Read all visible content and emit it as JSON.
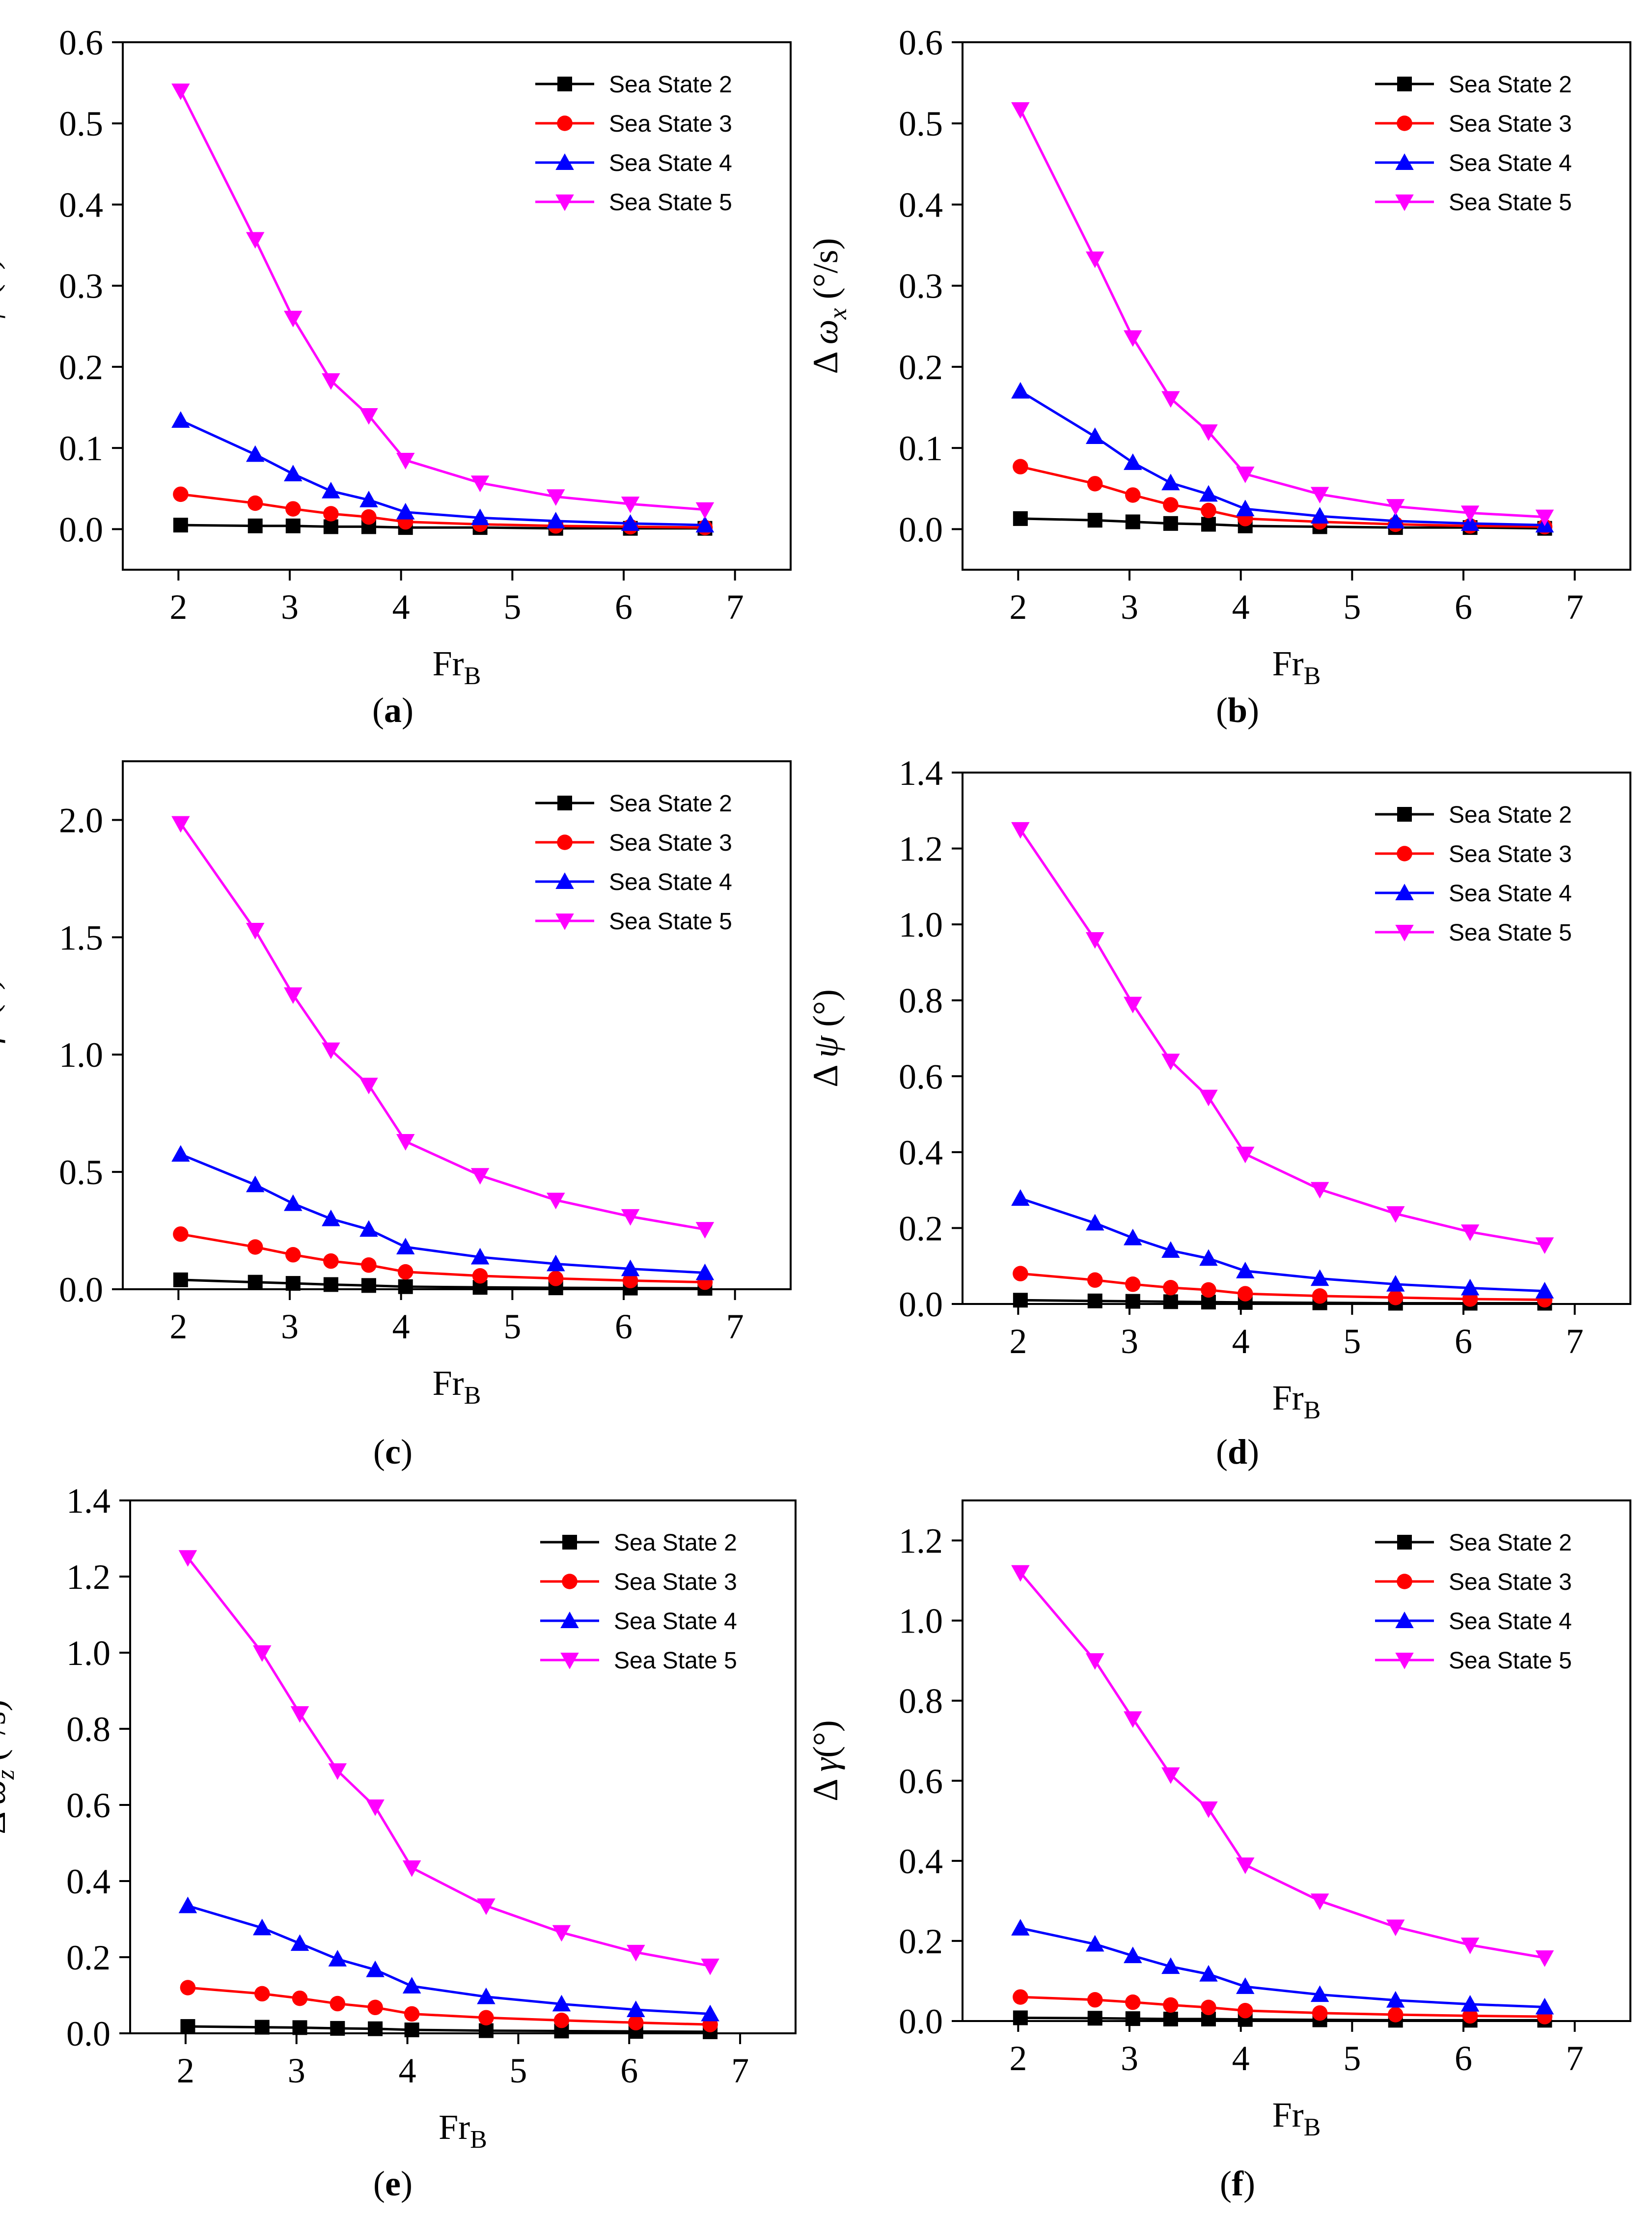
{
  "xlabel_main": "Fr",
  "xlabel_sub": "B",
  "series_colors": [
    "#000000",
    "#ff0000",
    "#0000ff",
    "#ff00ff"
  ],
  "series_markers": [
    "square",
    "circle",
    "triangle-up",
    "triangle-down"
  ],
  "chart_data": [
    {
      "type": "line",
      "caption": "a",
      "ylabel_prefix": "Δ ",
      "ylabel_symbol": "φ",
      "ylabel_sub": "",
      "ylabel_unit": " (°)",
      "xlim": [
        1.5,
        7.5
      ],
      "ylim": [
        -0.05,
        0.6
      ],
      "xticks": [
        "2",
        "3",
        "4",
        "5",
        "6",
        "7"
      ],
      "yticks": [
        "0.0",
        "0.1",
        "0.2",
        "0.3",
        "0.4",
        "0.5",
        "0.6"
      ],
      "legend_position": "top-right",
      "x": [
        2.02,
        2.69,
        3.03,
        3.37,
        3.71,
        4.04,
        4.71,
        5.39,
        6.06,
        6.73
      ],
      "series": [
        {
          "name": "Sea State 2",
          "values": [
            0.005,
            0.004,
            0.004,
            0.003,
            0.003,
            0.002,
            0.002,
            0.001,
            0.001,
            0.001
          ]
        },
        {
          "name": "Sea State 3",
          "values": [
            0.043,
            0.032,
            0.025,
            0.019,
            0.015,
            0.009,
            0.006,
            0.004,
            0.003,
            0.002
          ]
        },
        {
          "name": "Sea State 4",
          "values": [
            0.134,
            0.092,
            0.068,
            0.047,
            0.036,
            0.021,
            0.014,
            0.01,
            0.007,
            0.005
          ]
        },
        {
          "name": "Sea State 5",
          "values": [
            0.54,
            0.357,
            0.26,
            0.183,
            0.14,
            0.085,
            0.057,
            0.04,
            0.031,
            0.024
          ]
        }
      ]
    },
    {
      "type": "line",
      "caption": "b",
      "ylabel_prefix": "Δ ",
      "ylabel_symbol": "ω",
      "ylabel_sub": "x",
      "ylabel_unit": " (°/s)",
      "xlim": [
        1.5,
        7.5
      ],
      "ylim": [
        -0.05,
        0.6
      ],
      "xticks": [
        "2",
        "3",
        "4",
        "5",
        "6",
        "7"
      ],
      "yticks": [
        "0.0",
        "0.1",
        "0.2",
        "0.3",
        "0.4",
        "0.5",
        "0.6"
      ],
      "legend_position": "top-right",
      "x": [
        2.02,
        2.69,
        3.03,
        3.37,
        3.71,
        4.04,
        4.71,
        5.39,
        6.06,
        6.73
      ],
      "series": [
        {
          "name": "Sea State 2",
          "values": [
            0.013,
            0.011,
            0.009,
            0.007,
            0.006,
            0.004,
            0.003,
            0.002,
            0.002,
            0.001
          ]
        },
        {
          "name": "Sea State 3",
          "values": [
            0.077,
            0.056,
            0.042,
            0.03,
            0.023,
            0.013,
            0.009,
            0.006,
            0.004,
            0.003
          ]
        },
        {
          "name": "Sea State 4",
          "values": [
            0.17,
            0.114,
            0.082,
            0.057,
            0.043,
            0.025,
            0.016,
            0.01,
            0.007,
            0.005
          ]
        },
        {
          "name": "Sea State 5",
          "values": [
            0.517,
            0.333,
            0.236,
            0.161,
            0.12,
            0.068,
            0.043,
            0.028,
            0.02,
            0.015
          ]
        }
      ]
    },
    {
      "type": "line",
      "caption": "c",
      "ylabel_prefix": "Δ ",
      "ylabel_symbol": "β",
      "ylabel_sub": "",
      "ylabel_unit": " (°)",
      "xlim": [
        1.5,
        7.5
      ],
      "ylim": [
        0.0,
        2.25
      ],
      "xticks": [
        "2",
        "3",
        "4",
        "5",
        "6",
        "7"
      ],
      "yticks": [
        "0.0",
        "0.5",
        "1.0",
        "1.5",
        "2.0"
      ],
      "legend_position": "top-right",
      "x": [
        2.02,
        2.69,
        3.03,
        3.37,
        3.71,
        4.04,
        4.71,
        5.39,
        6.06,
        6.73
      ],
      "series": [
        {
          "name": "Sea State 2",
          "values": [
            0.04,
            0.03,
            0.025,
            0.02,
            0.016,
            0.011,
            0.008,
            0.006,
            0.005,
            0.004
          ]
        },
        {
          "name": "Sea State 3",
          "values": [
            0.235,
            0.18,
            0.147,
            0.12,
            0.103,
            0.074,
            0.057,
            0.046,
            0.037,
            0.03
          ]
        },
        {
          "name": "Sea State 4",
          "values": [
            0.575,
            0.445,
            0.365,
            0.3,
            0.255,
            0.18,
            0.137,
            0.108,
            0.087,
            0.07
          ]
        },
        {
          "name": "Sea State 5",
          "values": [
            1.985,
            1.53,
            1.255,
            1.02,
            0.87,
            0.63,
            0.485,
            0.38,
            0.31,
            0.255
          ]
        }
      ]
    },
    {
      "type": "line",
      "caption": "d",
      "ylabel_prefix": "Δ ",
      "ylabel_symbol": "ψ",
      "ylabel_sub": "",
      "ylabel_unit": " (°)",
      "xlim": [
        1.5,
        7.5
      ],
      "ylim": [
        0.0,
        1.4
      ],
      "xticks": [
        "2",
        "3",
        "4",
        "5",
        "6",
        "7"
      ],
      "yticks": [
        "0.0",
        "0.2",
        "0.4",
        "0.6",
        "0.8",
        "1.0",
        "1.2",
        "1.4"
      ],
      "legend_position": "top-right",
      "x": [
        2.02,
        2.69,
        3.03,
        3.37,
        3.71,
        4.04,
        4.71,
        5.39,
        6.06,
        6.73
      ],
      "series": [
        {
          "name": "Sea State 2",
          "values": [
            0.01,
            0.008,
            0.007,
            0.006,
            0.005,
            0.004,
            0.003,
            0.002,
            0.002,
            0.002
          ]
        },
        {
          "name": "Sea State 3",
          "values": [
            0.08,
            0.063,
            0.052,
            0.043,
            0.037,
            0.027,
            0.021,
            0.017,
            0.013,
            0.011
          ]
        },
        {
          "name": "Sea State 4",
          "values": [
            0.278,
            0.213,
            0.174,
            0.141,
            0.12,
            0.087,
            0.067,
            0.052,
            0.042,
            0.034
          ]
        },
        {
          "name": "Sea State 5",
          "values": [
            1.25,
            0.96,
            0.79,
            0.64,
            0.545,
            0.395,
            0.302,
            0.238,
            0.19,
            0.156
          ]
        }
      ]
    },
    {
      "type": "line",
      "caption": "e",
      "ylabel_prefix": "Δ ",
      "ylabel_symbol": "ω",
      "ylabel_sub": "z",
      "ylabel_unit": " (°/s)",
      "xlim": [
        1.5,
        7.5
      ],
      "ylim": [
        0.0,
        1.4
      ],
      "xticks": [
        "2",
        "3",
        "4",
        "5",
        "6",
        "7"
      ],
      "yticks": [
        "0.0",
        "0.2",
        "0.4",
        "0.6",
        "0.8",
        "1.0",
        "1.2",
        "1.4"
      ],
      "legend_position": "top-right",
      "x": [
        2.02,
        2.69,
        3.03,
        3.37,
        3.71,
        4.04,
        4.71,
        5.39,
        6.06,
        6.73
      ],
      "series": [
        {
          "name": "Sea State 2",
          "values": [
            0.018,
            0.016,
            0.015,
            0.013,
            0.012,
            0.009,
            0.007,
            0.006,
            0.005,
            0.004
          ]
        },
        {
          "name": "Sea State 3",
          "values": [
            0.12,
            0.104,
            0.092,
            0.078,
            0.068,
            0.051,
            0.041,
            0.034,
            0.028,
            0.023
          ]
        },
        {
          "name": "Sea State 4",
          "values": [
            0.335,
            0.277,
            0.236,
            0.195,
            0.167,
            0.124,
            0.096,
            0.077,
            0.062,
            0.051
          ]
        },
        {
          "name": "Sea State 5",
          "values": [
            1.25,
            1.0,
            0.84,
            0.69,
            0.595,
            0.435,
            0.335,
            0.265,
            0.213,
            0.177
          ]
        }
      ]
    },
    {
      "type": "line",
      "caption": "f",
      "ylabel_prefix": "Δ ",
      "ylabel_symbol": "γ",
      "ylabel_sub": "",
      "ylabel_unit": "(°)",
      "xlim": [
        1.5,
        7.5
      ],
      "ylim": [
        0.0,
        1.3
      ],
      "xticks": [
        "2",
        "3",
        "4",
        "5",
        "6",
        "7"
      ],
      "yticks": [
        "0.0",
        "0.2",
        "0.4",
        "0.6",
        "0.8",
        "1.0",
        "1.2"
      ],
      "legend_position": "top-right",
      "x": [
        2.02,
        2.69,
        3.03,
        3.37,
        3.71,
        4.04,
        4.71,
        5.39,
        6.06,
        6.73
      ],
      "series": [
        {
          "name": "Sea State 2",
          "values": [
            0.008,
            0.007,
            0.006,
            0.005,
            0.005,
            0.004,
            0.003,
            0.002,
            0.002,
            0.002
          ]
        },
        {
          "name": "Sea State 3",
          "values": [
            0.06,
            0.053,
            0.047,
            0.04,
            0.034,
            0.026,
            0.02,
            0.016,
            0.013,
            0.011
          ]
        },
        {
          "name": "Sea State 4",
          "values": [
            0.232,
            0.192,
            0.163,
            0.136,
            0.117,
            0.086,
            0.066,
            0.052,
            0.042,
            0.035
          ]
        },
        {
          "name": "Sea State 5",
          "values": [
            1.12,
            0.9,
            0.755,
            0.615,
            0.53,
            0.39,
            0.3,
            0.235,
            0.19,
            0.158
          ]
        }
      ]
    }
  ]
}
